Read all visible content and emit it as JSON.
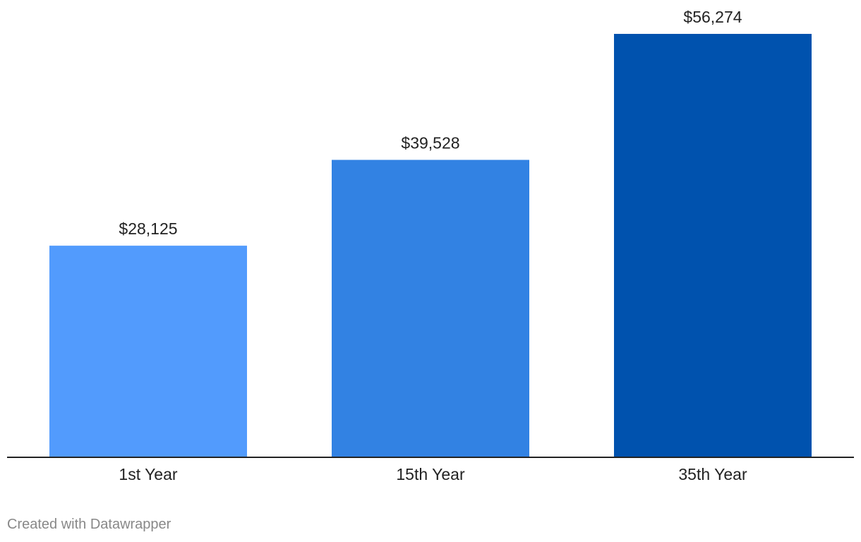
{
  "chart_data": {
    "type": "bar",
    "title": "",
    "xlabel": "",
    "ylabel": "",
    "categories": [
      "1st Year",
      "15th Year",
      "35th Year"
    ],
    "values": [
      28125,
      39528,
      56274
    ],
    "value_labels": [
      "$28,125",
      "$39,528",
      "$56,274"
    ],
    "colors": [
      "#529bfd",
      "#3282e3",
      "#0052ae"
    ],
    "ylim": [
      0,
      56274
    ],
    "grid": false,
    "legend": "none",
    "axis_color": "#222222"
  },
  "footer": {
    "credit": "Created with Datawrapper"
  }
}
